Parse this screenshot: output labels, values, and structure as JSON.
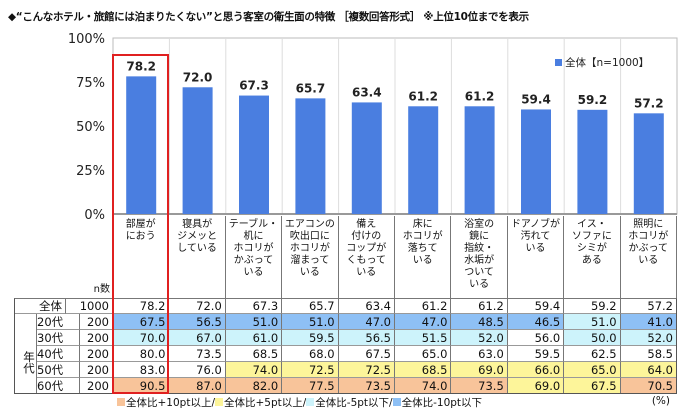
{
  "title": "◆“こんなホテル・旅館には泊まりたくない”と思う客室の衛生面の特徴 ［複数回答形式］ ※上位10位までを表示",
  "chart_data": {
    "type": "bar",
    "categories": [
      "部屋が\nにおう",
      "寝具が\nジメッと\nしている",
      "テーブル・\n机に\nホコリが\nかぶって\nいる",
      "エアコンの\n吹出口に\nホコリが\n溜まって\nいる",
      "備え\n付けの\nコップが\nくもって\nいる",
      "床に\nホコリが\n落ちて\nいる",
      "浴室の\n鏡に\n指紋・\n水垢が\nついて\nいる",
      "ドアノブが\n汚れて\nいる",
      "イス・\nソファに\nシミが\nある",
      "照明に\nホコリが\nかぶって\nいる"
    ],
    "series": [
      {
        "name": "全体【n=1000】",
        "values": [
          78.2,
          72.0,
          67.3,
          65.7,
          63.4,
          61.2,
          61.2,
          59.4,
          59.2,
          57.2
        ]
      }
    ],
    "yticks": [
      "0%",
      "25%",
      "50%",
      "75%",
      "100%"
    ],
    "ylim": [
      0,
      100
    ],
    "bar_color": "#4a7ee0",
    "highlight_color": "#e02020",
    "highlighted_category": 0,
    "legend": "top-right"
  },
  "table": {
    "n_header": "n数",
    "group_label": "年代",
    "rows": [
      {
        "label": "全体",
        "n": "1000",
        "values": [
          "78.2",
          "72.0",
          "67.3",
          "65.7",
          "63.4",
          "61.2",
          "61.2",
          "59.4",
          "59.2",
          "57.2"
        ],
        "marks": "----------"
      },
      {
        "label": "20代",
        "n": "200",
        "values": [
          "67.5",
          "56.5",
          "51.0",
          "51.0",
          "47.0",
          "47.0",
          "48.5",
          "46.5",
          "51.0",
          "41.0"
        ],
        "marks": "BBBBBBBBCB"
      },
      {
        "label": "30代",
        "n": "200",
        "values": [
          "70.0",
          "67.0",
          "61.0",
          "59.5",
          "56.5",
          "51.5",
          "52.0",
          "56.0",
          "50.0",
          "52.0"
        ],
        "marks": "CCCCCCC-CC"
      },
      {
        "label": "40代",
        "n": "200",
        "values": [
          "80.0",
          "73.5",
          "68.5",
          "68.0",
          "67.5",
          "65.0",
          "63.0",
          "59.5",
          "62.5",
          "58.5"
        ],
        "marks": "----------"
      },
      {
        "label": "50代",
        "n": "200",
        "values": [
          "83.0",
          "76.0",
          "74.0",
          "72.5",
          "72.5",
          "68.5",
          "69.0",
          "66.0",
          "65.0",
          "64.0"
        ],
        "marks": "--YYYYYYYY"
      },
      {
        "label": "60代",
        "n": "200",
        "values": [
          "90.5",
          "87.0",
          "82.0",
          "77.5",
          "73.5",
          "74.0",
          "73.5",
          "69.0",
          "67.5",
          "70.5"
        ],
        "marks": "OOOOOOOYYO"
      }
    ],
    "mark_colors": {
      "O": "#f8c49a",
      "Y": "#fdf59a",
      "C": "#cdf3fb",
      "B": "#8ec0f5"
    }
  },
  "legend": [
    {
      "label": "全体比+10pt以上/",
      "color": "#f8c49a"
    },
    {
      "label": "全体比+5pt以上/",
      "color": "#fdf59a"
    },
    {
      "label": "全体比-5pt以下/",
      "color": "#cdf3fb"
    },
    {
      "label": "全体比-10pt以下",
      "color": "#8ec0f5"
    }
  ],
  "unit": "(%)"
}
